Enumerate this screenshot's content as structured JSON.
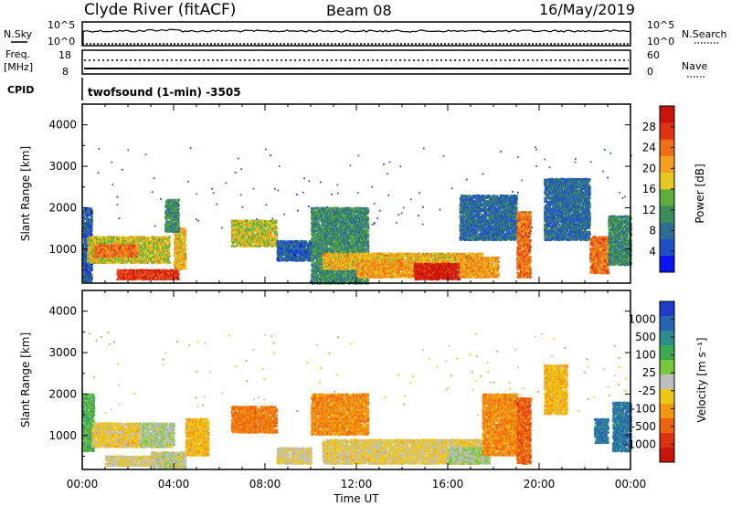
{
  "header": {
    "title": "Clyde River (fitACF)",
    "beam": "Beam 08",
    "date": "16/May/2019"
  },
  "top_panels": {
    "nsky_label": "N.Sky",
    "nsearch_label": "N.Search",
    "nsky_ticks": [
      "10^5",
      "10^0"
    ],
    "freq_label": "Freq.",
    "freq_unit": "[MHz]",
    "freq_ticks": [
      "18",
      "8"
    ],
    "nave_label": "Nave",
    "nave_ticks": [
      "60",
      "0"
    ],
    "cpid_label": "CPID",
    "cpid_value": "twofsound (1-min) -3505"
  },
  "colors": {
    "power_scale": [
      "#0a14f0",
      "#2050c8",
      "#2e6e96",
      "#3c8c5a",
      "#5fae3c",
      "#e6c81e",
      "#f5a01e",
      "#f06e14",
      "#e13214",
      "#c8140a"
    ],
    "velocity_scale": [
      "#1e3cc8",
      "#2864b4",
      "#2d8c8c",
      "#3caa50",
      "#78c83c",
      "#bebebe",
      "#f0c814",
      "#f5960f",
      "#f0640f",
      "#dc320f",
      "#c8140a"
    ]
  },
  "chart_data": [
    {
      "type": "heatmap",
      "name": "power",
      "ylabel": "Slant Range [km]",
      "xlabel": "Time UT",
      "ylim": [
        180,
        4500
      ],
      "x_ticks": [
        "00:00",
        "04:00",
        "08:00",
        "12:00",
        "16:00",
        "20:00",
        "00:00"
      ],
      "y_ticks": [
        1000,
        2000,
        3000,
        4000
      ],
      "colorbar": {
        "label": "Power [dB]",
        "ticks": [
          "4",
          "8",
          "12",
          "16",
          "20",
          "24",
          "28"
        ],
        "range": [
          0,
          30
        ]
      },
      "regions": [
        {
          "t": [
            0.0,
            0.4
          ],
          "r": [
            200,
            2000
          ],
          "level": 6
        },
        {
          "t": [
            0.2,
            3.8
          ],
          "r": [
            650,
            1300
          ],
          "level": 16
        },
        {
          "t": [
            0.5,
            2.4
          ],
          "r": [
            800,
            1100
          ],
          "level": 22
        },
        {
          "t": [
            1.5,
            4.2
          ],
          "r": [
            250,
            500
          ],
          "level": 26
        },
        {
          "t": [
            4.0,
            4.5
          ],
          "r": [
            500,
            1500
          ],
          "level": 18
        },
        {
          "t": [
            3.6,
            4.2
          ],
          "r": [
            1400,
            2200
          ],
          "level": 10
        },
        {
          "t": [
            6.5,
            8.5
          ],
          "r": [
            1050,
            1700
          ],
          "level": 16
        },
        {
          "t": [
            8.5,
            10.0
          ],
          "r": [
            700,
            1200
          ],
          "level": 6
        },
        {
          "t": [
            10.0,
            12.5
          ],
          "r": [
            150,
            2000
          ],
          "level": 10
        },
        {
          "t": [
            10.5,
            17.5
          ],
          "r": [
            500,
            900
          ],
          "level": 18
        },
        {
          "t": [
            12.0,
            16.0
          ],
          "r": [
            300,
            700
          ],
          "level": 20
        },
        {
          "t": [
            14.5,
            16.5
          ],
          "r": [
            250,
            650
          ],
          "level": 28
        },
        {
          "t": [
            16.5,
            19.0
          ],
          "r": [
            1200,
            2300
          ],
          "level": 7
        },
        {
          "t": [
            16.5,
            18.2
          ],
          "r": [
            300,
            800
          ],
          "level": 20
        },
        {
          "t": [
            19.0,
            19.6
          ],
          "r": [
            300,
            1900
          ],
          "level": 22
        },
        {
          "t": [
            20.2,
            22.2
          ],
          "r": [
            1200,
            2700
          ],
          "level": 7
        },
        {
          "t": [
            22.2,
            23.0
          ],
          "r": [
            400,
            1300
          ],
          "level": 22
        },
        {
          "t": [
            23.0,
            24.0
          ],
          "r": [
            600,
            1800
          ],
          "level": 10
        }
      ]
    },
    {
      "type": "heatmap",
      "name": "velocity",
      "ylabel": "Slant Range [km]",
      "xlabel": "Time UT",
      "ylim": [
        180,
        4500
      ],
      "x_ticks": [
        "00:00",
        "04:00",
        "08:00",
        "12:00",
        "16:00",
        "20:00",
        "00:00"
      ],
      "y_ticks": [
        1000,
        2000,
        3000,
        4000
      ],
      "colorbar": {
        "label": "Velocity [m s⁻¹]",
        "ticks": [
          "1000",
          "500",
          "100",
          "25",
          "-25",
          "-100",
          "-500",
          "-1000"
        ],
        "range": [
          -1250,
          1250
        ]
      },
      "regions": [
        {
          "t": [
            0.0,
            0.5
          ],
          "r": [
            600,
            2000
          ],
          "level": 400
        },
        {
          "t": [
            0.4,
            2.5
          ],
          "r": [
            700,
            1300
          ],
          "level": -200
        },
        {
          "t": [
            2.5,
            4.0
          ],
          "r": [
            700,
            1300
          ],
          "level": 50
        },
        {
          "t": [
            1.0,
            4.2
          ],
          "r": [
            250,
            500
          ],
          "level": -80
        },
        {
          "t": [
            3.0,
            4.5
          ],
          "r": [
            200,
            600
          ],
          "level": 0
        },
        {
          "t": [
            4.5,
            5.5
          ],
          "r": [
            500,
            1400
          ],
          "level": -300
        },
        {
          "t": [
            6.5,
            8.5
          ],
          "r": [
            1050,
            1700
          ],
          "level": -600
        },
        {
          "t": [
            8.5,
            10.0
          ],
          "r": [
            300,
            700
          ],
          "level": -80
        },
        {
          "t": [
            10.0,
            12.5
          ],
          "r": [
            1000,
            2000
          ],
          "level": -500
        },
        {
          "t": [
            10.5,
            17.5
          ],
          "r": [
            300,
            900
          ],
          "level": -150
        },
        {
          "t": [
            16.0,
            17.8
          ],
          "r": [
            300,
            700
          ],
          "level": 80
        },
        {
          "t": [
            17.5,
            19.0
          ],
          "r": [
            500,
            2000
          ],
          "level": -500
        },
        {
          "t": [
            19.0,
            19.6
          ],
          "r": [
            300,
            1900
          ],
          "level": -700
        },
        {
          "t": [
            20.2,
            21.2
          ],
          "r": [
            1500,
            2700
          ],
          "level": -300
        },
        {
          "t": [
            22.4,
            23.0
          ],
          "r": [
            800,
            1400
          ],
          "level": 800
        },
        {
          "t": [
            23.2,
            24.0
          ],
          "r": [
            600,
            1800
          ],
          "level": 800
        }
      ]
    }
  ]
}
